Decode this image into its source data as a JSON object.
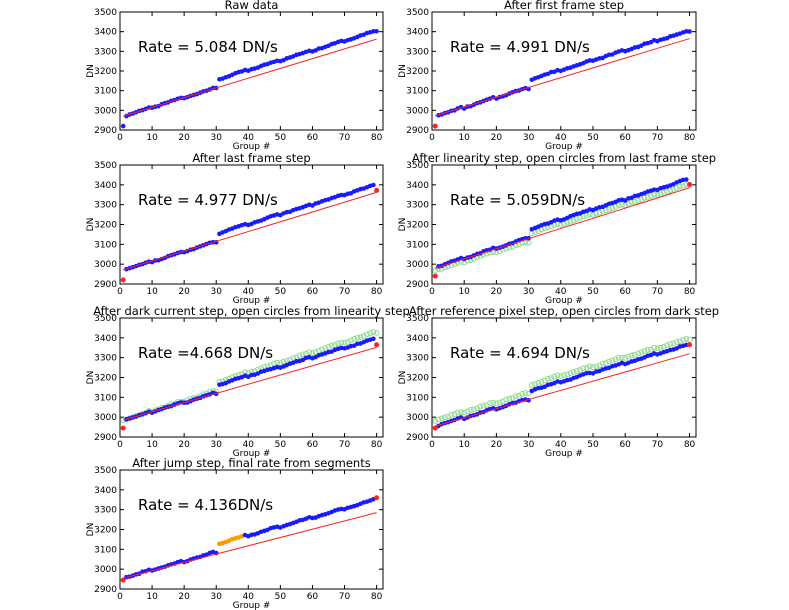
{
  "figure": {
    "description_fields": "six-plus-one panel pipeline figure",
    "colors": {
      "filled": "#1a1aff",
      "open": "#8fd88f",
      "fit": "#ff2222",
      "rejected": "#ff2222",
      "segment": "#ff9900",
      "axis": "#000000"
    }
  },
  "chart_data": [
    {
      "type": "scatter",
      "title": "Raw data",
      "rate_label": "Rate = 5.084 DN/s",
      "xlabel": "Group #",
      "ylabel": "DN",
      "xlim": [
        0,
        82
      ],
      "ylim": [
        2900,
        3500
      ],
      "xticks": [
        "0",
        "10",
        "20",
        "30",
        "40",
        "50",
        "60",
        "70",
        "80"
      ],
      "yticks": [
        "2900",
        "3000",
        "3100",
        "3200",
        "3300",
        "3400",
        "3500"
      ],
      "series": [
        {
          "name": "data",
          "style": "filled",
          "model": {
            "start": 2975,
            "slope": 5.0,
            "jump_at": 31,
            "jump": 40,
            "offset": 0
          },
          "first_point": 2920
        },
        {
          "name": "fit",
          "style": "line",
          "line": [
            [
              1,
              2970
            ],
            [
              80,
              3362
            ]
          ]
        }
      ]
    },
    {
      "type": "scatter",
      "title": "After first frame step",
      "rate_label": "Rate = 4.991 DN/s",
      "xlabel": "Group #",
      "ylabel": "DN",
      "xlim": [
        0,
        82
      ],
      "ylim": [
        2900,
        3500
      ],
      "xticks": [
        "0",
        "10",
        "20",
        "30",
        "40",
        "50",
        "60",
        "70",
        "80"
      ],
      "yticks": [
        "2900",
        "3000",
        "3100",
        "3200",
        "3300",
        "3400",
        "3500"
      ],
      "series": [
        {
          "name": "data",
          "style": "filled",
          "model": {
            "start": 2975,
            "slope": 5.0,
            "jump_at": 31,
            "jump": 40,
            "offset": 0
          },
          "rejected": [
            [
              1,
              2920
            ]
          ]
        },
        {
          "name": "fit",
          "style": "line",
          "line": [
            [
              1,
              2972
            ],
            [
              80,
              3365
            ]
          ]
        }
      ]
    },
    {
      "type": "scatter",
      "title": "After last frame step",
      "rate_label": "Rate = 4.977 DN/s",
      "xlabel": "Group #",
      "ylabel": "DN",
      "xlim": [
        0,
        82
      ],
      "ylim": [
        2900,
        3500
      ],
      "xticks": [
        "0",
        "10",
        "20",
        "30",
        "40",
        "50",
        "60",
        "70",
        "80"
      ],
      "yticks": [
        "2900",
        "3000",
        "3100",
        "3200",
        "3300",
        "3400",
        "3500"
      ],
      "series": [
        {
          "name": "data",
          "style": "filled",
          "model": {
            "start": 2975,
            "slope": 4.95,
            "jump_at": 31,
            "jump": 40,
            "offset": 0
          },
          "rejected": [
            [
              1,
              2920
            ],
            [
              80,
              3372
            ]
          ]
        },
        {
          "name": "fit",
          "style": "line",
          "line": [
            [
              1,
              2972
            ],
            [
              80,
              3362
            ]
          ]
        }
      ]
    },
    {
      "type": "scatter",
      "title": "After linearity step, open circles from last frame step",
      "rate_label": "Rate = 5.059DN/s",
      "xlabel": "Group #",
      "ylabel": "DN",
      "xlim": [
        0,
        82
      ],
      "ylim": [
        2900,
        3500
      ],
      "xticks": [
        "0",
        "10",
        "20",
        "30",
        "40",
        "50",
        "60",
        "70",
        "80"
      ],
      "yticks": [
        "2900",
        "3000",
        "3100",
        "3200",
        "3300",
        "3400",
        "3500"
      ],
      "series": [
        {
          "name": "previous",
          "style": "open",
          "model": {
            "start": 2975,
            "slope": 4.95,
            "jump_at": 31,
            "jump": 40,
            "offset": 0
          }
        },
        {
          "name": "data",
          "style": "filled",
          "model": {
            "start": 2990,
            "slope": 5.1,
            "jump_at": 31,
            "jump": 42,
            "offset": 0
          },
          "rejected": [
            [
              1,
              2940
            ],
            [
              80,
              3402
            ]
          ]
        },
        {
          "name": "fit",
          "style": "line",
          "line": [
            [
              1,
              2980
            ],
            [
              80,
              3385
            ]
          ]
        }
      ]
    },
    {
      "type": "scatter",
      "title": "After dark current step, open circles from linearity step",
      "rate_label": "Rate =4.668 DN/s",
      "xlabel": "Group #",
      "ylabel": "DN",
      "xlim": [
        0,
        82
      ],
      "ylim": [
        2900,
        3500
      ],
      "xticks": [
        "0",
        "10",
        "20",
        "30",
        "40",
        "50",
        "60",
        "70",
        "80"
      ],
      "yticks": [
        "2900",
        "3000",
        "3100",
        "3200",
        "3300",
        "3400",
        "3500"
      ],
      "series": [
        {
          "name": "previous",
          "style": "open",
          "model": {
            "start": 2990,
            "slope": 5.1,
            "jump_at": 31,
            "jump": 42,
            "offset": 0
          }
        },
        {
          "name": "data",
          "style": "filled",
          "model": {
            "start": 2990,
            "slope": 4.7,
            "jump_at": 31,
            "jump": 40,
            "offset": 0
          },
          "rejected": [
            [
              1,
              2945
            ],
            [
              80,
              3365
            ]
          ]
        },
        {
          "name": "fit",
          "style": "line",
          "line": [
            [
              1,
              2985
            ],
            [
              80,
              3352
            ]
          ]
        }
      ]
    },
    {
      "type": "scatter",
      "title": "After reference pixel step, open circles from dark step",
      "rate_label": "Rate = 4.694 DN/s",
      "xlabel": "Group #",
      "ylabel": "DN",
      "xlim": [
        0,
        82
      ],
      "ylim": [
        2900,
        3500
      ],
      "xticks": [
        "0",
        "10",
        "20",
        "30",
        "40",
        "50",
        "60",
        "70",
        "80"
      ],
      "yticks": [
        "2900",
        "3000",
        "3100",
        "3200",
        "3300",
        "3400",
        "3500"
      ],
      "series": [
        {
          "name": "previous",
          "style": "open",
          "model": {
            "start": 2990,
            "slope": 4.7,
            "jump_at": 31,
            "jump": 40,
            "offset": 0
          }
        },
        {
          "name": "data",
          "style": "filled",
          "model": {
            "start": 2960,
            "slope": 4.7,
            "jump_at": 31,
            "jump": 40,
            "offset": 0
          },
          "rejected": [
            [
              1,
              2945
            ],
            [
              80,
              3365
            ]
          ]
        },
        {
          "name": "fit",
          "style": "line",
          "line": [
            [
              1,
              2955
            ],
            [
              80,
              3320
            ]
          ]
        }
      ]
    },
    {
      "type": "scatter",
      "title": "After jump step, final rate from segments",
      "rate_label": "Rate = 4.136DN/s",
      "xlabel": "Group #",
      "ylabel": "DN",
      "xlim": [
        0,
        82
      ],
      "ylim": [
        2900,
        3500
      ],
      "xticks": [
        "0",
        "10",
        "20",
        "30",
        "40",
        "50",
        "60",
        "70",
        "80"
      ],
      "yticks": [
        "2900",
        "3000",
        "3100",
        "3200",
        "3300",
        "3400",
        "3500"
      ],
      "series": [
        {
          "name": "data",
          "style": "filled",
          "model": {
            "start": 2960,
            "slope": 4.5,
            "jump_at": 31,
            "jump": 40,
            "offset": 0
          },
          "segment_range": [
            31,
            38
          ],
          "rejected": [
            [
              1,
              2945
            ],
            [
              80,
              3360
            ]
          ]
        },
        {
          "name": "fit",
          "style": "line",
          "line": [
            [
              1,
              2955
            ],
            [
              80,
              3285
            ]
          ]
        }
      ]
    }
  ]
}
